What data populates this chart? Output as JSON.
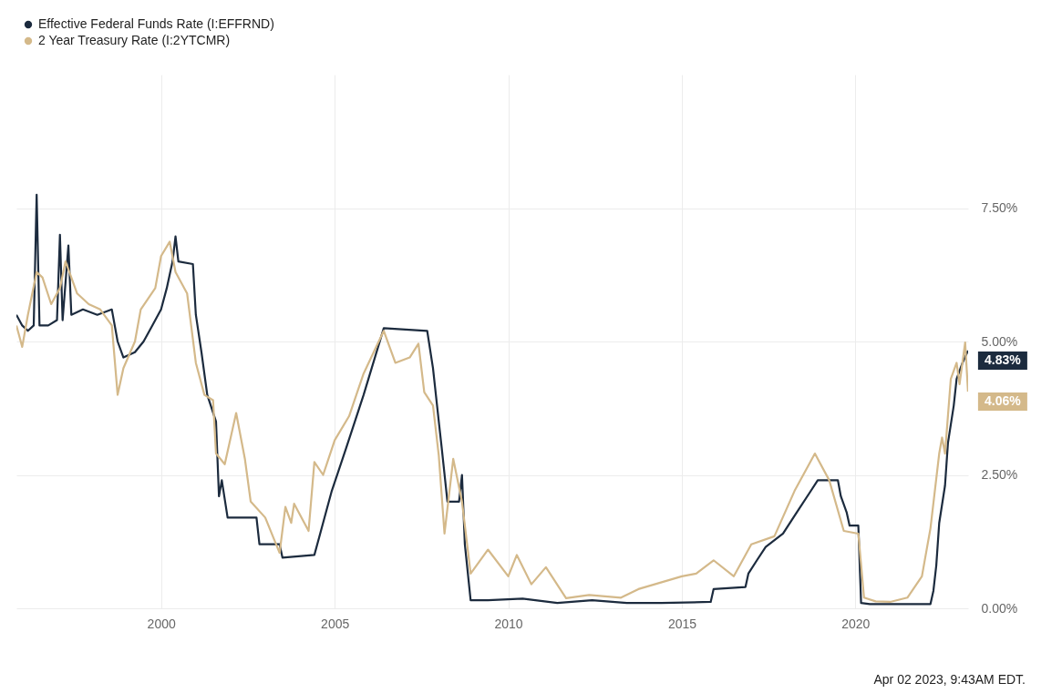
{
  "chart_data": {
    "type": "line",
    "legend": "top left",
    "grid": true,
    "xlim": [
      "1995-11",
      "2023-04"
    ],
    "xticks": [
      "2000",
      "2005",
      "2010",
      "2015",
      "2020"
    ],
    "ylim": [
      0,
      10
    ],
    "yticks": [
      {
        "value": 0,
        "label": "0.00%"
      },
      {
        "value": 2.5,
        "label": "2.50%"
      },
      {
        "value": 5,
        "label": "5.00%"
      },
      {
        "value": 7.5,
        "label": "7.50%"
      }
    ],
    "series": [
      {
        "name": "Effective Federal Funds Rate (I:EFFRND)",
        "color": "#1c2b3e",
        "x": [
          "1995-11",
          "1996-01",
          "1996-03",
          "1996-05",
          "1996-06",
          "1996-07",
          "1996-10",
          "1997-01",
          "1997-02",
          "1997-03",
          "1997-05",
          "1997-06",
          "1997-10",
          "1998-03",
          "1998-08",
          "1998-10",
          "1998-12",
          "1999-04",
          "1999-07",
          "1999-10",
          "2000-01",
          "2000-03",
          "2000-05",
          "2000-06",
          "2000-07",
          "2000-12",
          "2001-01",
          "2001-03",
          "2001-05",
          "2001-08",
          "2001-09",
          "2001-10",
          "2001-12",
          "2002-10",
          "2002-11",
          "2003-06",
          "2003-07",
          "2004-06",
          "2004-08",
          "2004-12",
          "2005-05",
          "2005-11",
          "2006-06",
          "2007-09",
          "2007-11",
          "2008-01",
          "2008-02",
          "2008-04",
          "2008-08",
          "2008-09",
          "2008-10",
          "2008-12",
          "2009-06",
          "2010-06",
          "2011-06",
          "2012-06",
          "2013-06",
          "2014-06",
          "2015-11",
          "2015-12",
          "2016-11",
          "2016-12",
          "2017-03",
          "2017-06",
          "2017-12",
          "2018-03",
          "2018-06",
          "2018-09",
          "2018-12",
          "2019-07",
          "2019-08",
          "2019-10",
          "2019-11",
          "2020-02",
          "2020-03",
          "2020-06",
          "2021-06",
          "2022-03",
          "2022-04",
          "2022-05",
          "2022-06",
          "2022-08",
          "2022-09",
          "2022-11",
          "2022-12",
          "2023-02",
          "2023-03-31"
        ],
        "values": [
          5.5,
          5.3,
          5.2,
          5.3,
          7.75,
          5.3,
          5.3,
          5.4,
          7.0,
          5.4,
          6.8,
          5.5,
          5.6,
          5.5,
          5.6,
          5.0,
          4.7,
          4.8,
          5.0,
          5.3,
          5.6,
          6.0,
          6.5,
          6.97,
          6.5,
          6.45,
          5.5,
          4.8,
          4.0,
          3.5,
          2.1,
          2.4,
          1.7,
          1.7,
          1.2,
          1.2,
          0.95,
          1.0,
          1.4,
          2.2,
          3.0,
          4.0,
          5.25,
          5.2,
          4.5,
          3.5,
          3.0,
          2.0,
          2.0,
          2.5,
          1.2,
          0.15,
          0.15,
          0.18,
          0.1,
          0.15,
          0.1,
          0.1,
          0.12,
          0.36,
          0.4,
          0.65,
          0.9,
          1.15,
          1.4,
          1.65,
          1.9,
          2.15,
          2.4,
          2.4,
          2.1,
          1.8,
          1.55,
          1.55,
          0.1,
          0.08,
          0.08,
          0.08,
          0.33,
          0.8,
          1.6,
          2.3,
          3.1,
          3.8,
          4.3,
          4.6,
          4.83
        ]
      },
      {
        "name": "2 Year Treasury Rate (I:2YTCMR)",
        "color": "#d4b98a",
        "x": [
          "1995-11",
          "1996-01",
          "1996-03",
          "1996-06",
          "1996-08",
          "1996-11",
          "1997-02",
          "1997-04",
          "1997-08",
          "1997-12",
          "1998-04",
          "1998-08",
          "1998-10",
          "1998-12",
          "1999-04",
          "1999-06",
          "1999-11",
          "2000-01",
          "2000-04",
          "2000-06",
          "2000-10",
          "2001-01",
          "2001-04",
          "2001-07",
          "2001-08",
          "2001-11",
          "2002-03",
          "2002-06",
          "2002-08",
          "2003-01",
          "2003-06",
          "2003-08",
          "2003-10",
          "2003-11",
          "2004-04",
          "2004-06",
          "2004-09",
          "2005-01",
          "2005-06",
          "2005-11",
          "2006-06",
          "2006-10",
          "2007-03",
          "2007-06",
          "2007-08",
          "2007-11",
          "2008-01",
          "2008-03",
          "2008-06",
          "2008-09",
          "2008-12",
          "2009-06",
          "2010-01",
          "2010-04",
          "2010-09",
          "2011-02",
          "2011-09",
          "2012-05",
          "2013-04",
          "2013-10",
          "2015-01",
          "2015-06",
          "2015-12",
          "2016-07",
          "2017-01",
          "2017-09",
          "2018-04",
          "2018-11",
          "2019-04",
          "2019-09",
          "2020-02",
          "2020-04",
          "2020-08",
          "2021-01",
          "2021-07",
          "2021-12",
          "2022-03",
          "2022-06",
          "2022-07",
          "2022-08",
          "2022-10",
          "2022-12",
          "2023-01",
          "2023-03",
          "2023-03-31"
        ],
        "values": [
          5.3,
          4.9,
          5.5,
          6.3,
          6.2,
          5.7,
          6.0,
          6.5,
          5.9,
          5.7,
          5.6,
          5.3,
          4.0,
          4.5,
          5.0,
          5.6,
          6.0,
          6.6,
          6.87,
          6.3,
          5.9,
          4.6,
          4.0,
          3.9,
          2.9,
          2.7,
          3.66,
          2.8,
          2.0,
          1.7,
          1.04,
          1.9,
          1.6,
          1.96,
          1.45,
          2.74,
          2.5,
          3.15,
          3.6,
          4.4,
          5.2,
          4.6,
          4.7,
          4.96,
          4.05,
          3.8,
          2.86,
          1.4,
          2.8,
          2.0,
          0.65,
          1.1,
          0.6,
          1.0,
          0.45,
          0.77,
          0.19,
          0.25,
          0.2,
          0.36,
          0.6,
          0.65,
          0.9,
          0.6,
          1.2,
          1.35,
          2.2,
          2.9,
          2.4,
          1.45,
          1.4,
          0.2,
          0.13,
          0.12,
          0.2,
          0.6,
          1.5,
          2.9,
          3.2,
          2.9,
          4.3,
          4.6,
          4.2,
          4.98,
          4.06
        ]
      }
    ],
    "annotations": [
      {
        "text": "4.83%",
        "x": "2023-03-31",
        "y": 4.83
      },
      {
        "text": "4.06%",
        "x": "2023-03-31",
        "y": 4.06
      },
      "Apr 02 2023, 9:43AM EDT."
    ]
  }
}
